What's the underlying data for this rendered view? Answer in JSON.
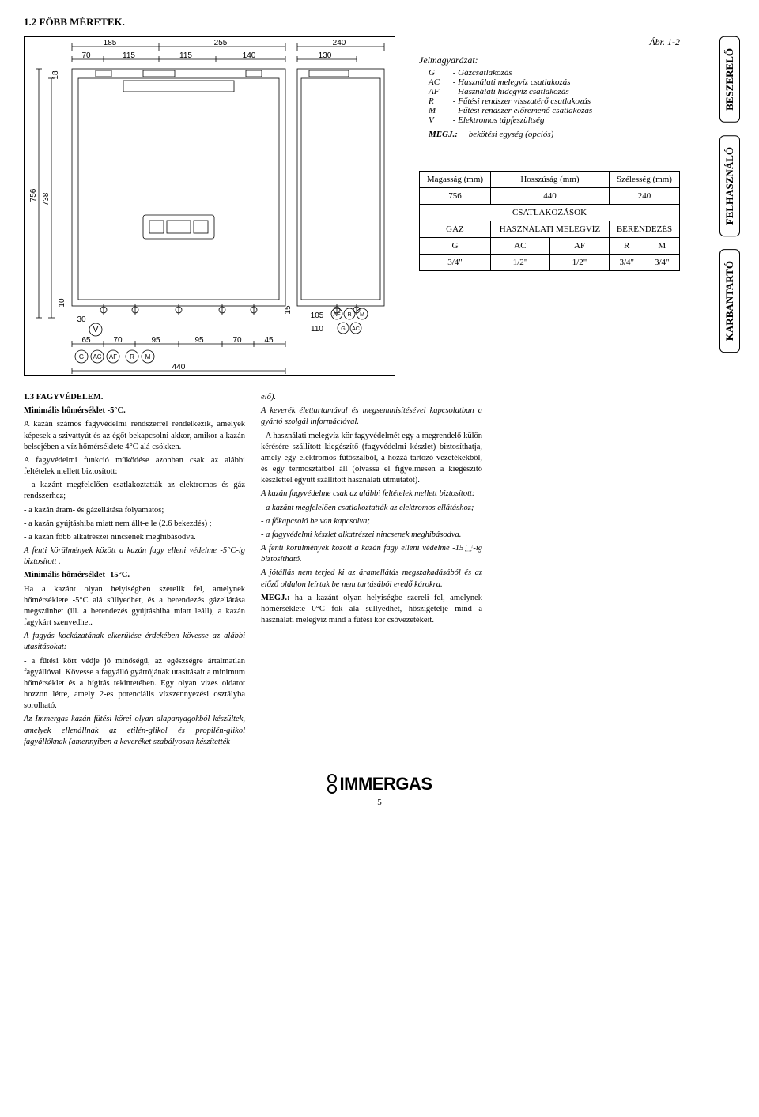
{
  "section_title": "1.2  FŐBB MÉRETEK.",
  "figure_label": "Ábr. 1-2",
  "diagram": {
    "top_dims": [
      "185",
      "255",
      "240"
    ],
    "top_sub": [
      "70",
      "115",
      "115",
      "140",
      "130"
    ],
    "left_dims": [
      "18",
      "756",
      "738",
      "10",
      "30"
    ],
    "bottom_dims": [
      "65",
      "70",
      "95",
      "95",
      "70",
      "45"
    ],
    "right_small": [
      "15",
      "105",
      "110"
    ],
    "overall_width": "440",
    "circle_row1": [
      "AF",
      "R",
      "M"
    ],
    "circle_row2": [
      "G",
      "AC"
    ],
    "circle_bottom": [
      "G",
      "AC",
      "AF",
      "R",
      "M"
    ],
    "v_label": "V"
  },
  "legend": {
    "title": "Jelmagyarázat:",
    "items": [
      {
        "code": "G",
        "text": "Gázcsatlakozás"
      },
      {
        "code": "AC",
        "text": "Használati melegvíz csatlakozás"
      },
      {
        "code": "AF",
        "text": "Használati hidegvíz csatlakozás"
      },
      {
        "code": "R",
        "text": "Fűtési rendszer visszatérő csatlakozás"
      },
      {
        "code": "M",
        "text": "Fűtési rendszer előremenő csatlakozás"
      },
      {
        "code": "V",
        "text": "Elektromos tápfeszültség"
      }
    ],
    "note_code": "MEGJ.:",
    "note_text": "bekötési egység (opciós)"
  },
  "table": {
    "headers": [
      "Magasság (mm)",
      "Hosszúság (mm)",
      "Szélesség (mm)"
    ],
    "row1": [
      "756",
      "440",
      "240"
    ],
    "csatlak": "CSATLAKOZÁSOK",
    "gaz": "GÁZ",
    "hasznalati": "HASZNÁLATI MELEGVÍZ",
    "berendezes": "BERENDEZÉS",
    "codes": [
      "G",
      "AC",
      "AF",
      "R",
      "M"
    ],
    "sizes": [
      "3/4\"",
      "1/2\"",
      "1/2\"",
      "3/4\"",
      "3/4\""
    ]
  },
  "tabs": [
    "BESZERELŐ",
    "FELHASZNÁLÓ",
    "KARBANTARTÓ"
  ],
  "lower": {
    "title": "1.3  FAGYVÉDELEM.",
    "col1": [
      {
        "b": true,
        "t": "Minimális hőmérséklet -5°C."
      },
      {
        "t": " A kazán számos fagyvédelmi rendszerrel rendelkezik, amelyek képesek a szivattyút és az égőt bekapcsolni akkor, amikor a kazán belsejében a víz hőmérséklete 4°C alá csökken."
      },
      {
        "t": "A fagyvédelmi funkció működése azonban csak az alábbi feltételek mellett biztosított:"
      },
      {
        "t": "- a kazánt megfelelően csatlakoztatták az elektromos és gáz rendszerhez;"
      },
      {
        "t": "- a kazán áram- és gázellátása folyamatos;"
      },
      {
        "t": "- a kazán gyújtáshiba miatt nem állt-e le (2.6 bekezdés) ;"
      },
      {
        "t": "- a kazán főbb alkatrészei nincsenek meghibásodva."
      },
      {
        "em": true,
        "t": "A fenti körülmények között a kazán fagy elleni védelme -5°C-ig biztosított ."
      },
      {
        "b": true,
        "t": "Minimális hőmérséklet -15°C."
      },
      {
        "t": " Ha a kazánt olyan helyiségben szerelik fel, amelynek hőmérséklete -5°C alá süllyedhet, és a berendezés gázellátása megszűnhet (ill. a berendezés gyújtáshiba miatt leáll), a kazán fagykárt szenvedhet."
      },
      {
        "em": true,
        "t": "A fagyás kockázatának elkerülése érdekében kövesse az alábbi utasításokat:"
      },
      {
        "t": "- a fűtési kört védje jó minőségű, az egészségre ártalmatlan fagyállóval. Kövesse a fagyálló gyártójának utasításait a minimum hőmérséklet és a hígítás tekintetében. Egy olyan vizes oldatot hozzon létre, amely 2-es potenciális vízszennyezési osztályba sorolható."
      },
      {
        "em": true,
        "t": "Az Immergas kazán fűtési körei olyan alapanyagokból készültek, amelyek ellenállnak az etilén-glikol és propilén-glikol fagyállóknak (amennyiben a keveréket szabályosan készítették"
      }
    ],
    "col2": [
      {
        "em": true,
        "t": "elő)."
      },
      {
        "em": true,
        "t": "A keverék élettartamával és megsemmisítésével kapcsolatban a gyártó szolgál információval."
      },
      {
        "t": "- A használati melegvíz kör fagyvédelmét egy a megrendelő külön kérésére szállított kiegészítő (fagyvédelmi készlet) biztosíthatja, amely egy elektromos fűtőszálból, a hozzá tartozó vezetékekből, és egy termosztátból áll (olvassa el figyelmesen a kiegészítő készlettel együtt szállított használati útmutatót)."
      },
      {
        "em": true,
        "t": "A kazán fagyvédelme csak az alábbi feltételek mellett biztosított:"
      },
      {
        "em": true,
        "t": "- a kazánt megfelelően csatlakoztatták az elektromos ellátáshoz;"
      },
      {
        "em": true,
        "t": "- a főkapcsoló be van kapcsolva;"
      },
      {
        "em": true,
        "t": "- a fagyvédelmi készlet alkatrészei nincsenek meghibásodva."
      },
      {
        "em": true,
        "t": "A fenti körülmények között a kazán fagy elleni védelme -15⬚-ig biztosítható."
      },
      {
        "em": true,
        "t": "A jótállás nem terjed ki az áramellátás megszakadásából és az előző oldalon leírtak be nem tartásából eredő károkra."
      },
      {
        "t": "MEGJ.: ha a kazánt olyan helyiségbe szereli fel, amelynek hőmérséklete 0°C fok alá süllyedhet, hőszigetelje mind a használati melegvíz mind a fűtési kör csővezetékeit.",
        "b_prefix": "MEGJ.:"
      }
    ]
  },
  "logo": "IMMERGAS",
  "page_number": "5"
}
